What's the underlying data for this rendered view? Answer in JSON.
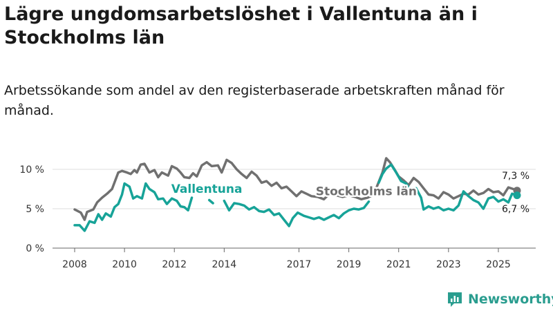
{
  "title": "Lägre ungdomsarbetslöshet i Vallentuna än i Stockholms län",
  "subtitle": "Arbetssökande som andel av den registerbaserade arbetskraften månad för månad.",
  "brand": {
    "name": "Newsworthy",
    "icon": "newsworthy-logo-icon"
  },
  "colors": {
    "vallentuna": "#17a398",
    "stockholm": "#707070",
    "grid": "#dddddd",
    "axis": "#666666"
  },
  "chart_data": {
    "type": "line",
    "x_range": [
      2008.0,
      2025.75
    ],
    "ylim": [
      0,
      12
    ],
    "y_ticks": [
      {
        "value": 0,
        "label": "0 %"
      },
      {
        "value": 5,
        "label": "5 %"
      },
      {
        "value": 10,
        "label": "10 %"
      }
    ],
    "x_ticks": [
      {
        "value": 2008,
        "label": "2008"
      },
      {
        "value": 2010,
        "label": "2010"
      },
      {
        "value": 2012,
        "label": "2012"
      },
      {
        "value": 2014,
        "label": "2014"
      },
      {
        "value": 2017,
        "label": "2017"
      },
      {
        "value": 2019,
        "label": "2019"
      },
      {
        "value": 2021,
        "label": "2021"
      },
      {
        "value": 2023,
        "label": "2023"
      },
      {
        "value": 2025,
        "label": "2025"
      }
    ],
    "series": [
      {
        "name": "Stockholms län",
        "color": "#707070",
        "end_label": "7,3 %",
        "points": [
          [
            2008.0,
            4.9
          ],
          [
            2008.25,
            4.5
          ],
          [
            2008.4,
            3.6
          ],
          [
            2008.5,
            4.6
          ],
          [
            2008.75,
            4.9
          ],
          [
            2008.9,
            5.8
          ],
          [
            2009.1,
            6.4
          ],
          [
            2009.3,
            6.9
          ],
          [
            2009.5,
            7.5
          ],
          [
            2009.75,
            9.6
          ],
          [
            2009.9,
            9.8
          ],
          [
            2010.1,
            9.6
          ],
          [
            2010.25,
            9.4
          ],
          [
            2010.4,
            9.9
          ],
          [
            2010.5,
            9.6
          ],
          [
            2010.65,
            10.6
          ],
          [
            2010.8,
            10.7
          ],
          [
            2011.0,
            9.6
          ],
          [
            2011.2,
            9.9
          ],
          [
            2011.35,
            9.0
          ],
          [
            2011.5,
            9.6
          ],
          [
            2011.75,
            9.2
          ],
          [
            2011.9,
            10.4
          ],
          [
            2012.1,
            10.1
          ],
          [
            2012.25,
            9.6
          ],
          [
            2012.4,
            9.0
          ],
          [
            2012.6,
            8.9
          ],
          [
            2012.75,
            9.5
          ],
          [
            2012.9,
            9.1
          ],
          [
            2013.1,
            10.5
          ],
          [
            2013.3,
            10.9
          ],
          [
            2013.5,
            10.4
          ],
          [
            2013.75,
            10.5
          ],
          [
            2013.9,
            9.6
          ],
          [
            2014.1,
            11.2
          ],
          [
            2014.3,
            10.8
          ],
          [
            2014.5,
            10.0
          ],
          [
            2014.7,
            9.4
          ],
          [
            2014.9,
            8.9
          ],
          [
            2015.1,
            9.7
          ],
          [
            2015.3,
            9.2
          ],
          [
            2015.5,
            8.3
          ],
          [
            2015.7,
            8.5
          ],
          [
            2015.9,
            7.9
          ],
          [
            2016.1,
            8.3
          ],
          [
            2016.3,
            7.6
          ],
          [
            2016.5,
            7.8
          ],
          [
            2016.7,
            7.2
          ],
          [
            2016.9,
            6.6
          ],
          [
            2017.1,
            7.2
          ],
          [
            2017.3,
            6.9
          ],
          [
            2017.5,
            6.6
          ],
          [
            2017.75,
            6.5
          ],
          [
            2018.0,
            6.2
          ],
          [
            2018.25,
            7.0
          ],
          [
            2018.5,
            6.7
          ],
          [
            2018.75,
            6.5
          ],
          [
            2019.0,
            6.7
          ],
          [
            2019.25,
            6.5
          ],
          [
            2019.5,
            6.2
          ],
          [
            2019.75,
            6.4
          ],
          [
            2020.0,
            6.8
          ],
          [
            2020.15,
            8.0
          ],
          [
            2020.35,
            9.6
          ],
          [
            2020.5,
            11.4
          ],
          [
            2020.65,
            10.9
          ],
          [
            2020.85,
            9.9
          ],
          [
            2021.0,
            9.1
          ],
          [
            2021.2,
            8.6
          ],
          [
            2021.4,
            8.0
          ],
          [
            2021.6,
            8.9
          ],
          [
            2021.8,
            8.4
          ],
          [
            2022.0,
            7.6
          ],
          [
            2022.2,
            6.8
          ],
          [
            2022.4,
            6.7
          ],
          [
            2022.6,
            6.3
          ],
          [
            2022.8,
            7.1
          ],
          [
            2023.0,
            6.8
          ],
          [
            2023.2,
            6.3
          ],
          [
            2023.4,
            6.6
          ],
          [
            2023.6,
            6.9
          ],
          [
            2023.8,
            6.8
          ],
          [
            2024.0,
            7.3
          ],
          [
            2024.2,
            6.8
          ],
          [
            2024.4,
            7.0
          ],
          [
            2024.6,
            7.5
          ],
          [
            2024.8,
            7.1
          ],
          [
            2025.0,
            7.2
          ],
          [
            2025.2,
            6.7
          ],
          [
            2025.4,
            7.7
          ],
          [
            2025.6,
            7.5
          ],
          [
            2025.75,
            7.3
          ]
        ]
      },
      {
        "name": "Vallentuna",
        "color": "#17a398",
        "end_label": "6,7 %",
        "points": [
          [
            2008.0,
            2.9
          ],
          [
            2008.2,
            2.9
          ],
          [
            2008.4,
            2.2
          ],
          [
            2008.6,
            3.4
          ],
          [
            2008.8,
            3.2
          ],
          [
            2008.95,
            4.3
          ],
          [
            2009.1,
            3.6
          ],
          [
            2009.25,
            4.4
          ],
          [
            2009.45,
            4.0
          ],
          [
            2009.6,
            5.2
          ],
          [
            2009.75,
            5.6
          ],
          [
            2009.9,
            6.8
          ],
          [
            2010.0,
            8.2
          ],
          [
            2010.2,
            7.8
          ],
          [
            2010.35,
            6.3
          ],
          [
            2010.5,
            6.6
          ],
          [
            2010.7,
            6.3
          ],
          [
            2010.85,
            8.2
          ],
          [
            2011.0,
            7.5
          ],
          [
            2011.2,
            7.1
          ],
          [
            2011.35,
            6.2
          ],
          [
            2011.55,
            6.3
          ],
          [
            2011.7,
            5.6
          ],
          [
            2011.9,
            6.3
          ],
          [
            2012.1,
            6.0
          ],
          [
            2012.25,
            5.3
          ],
          [
            2012.4,
            5.2
          ],
          [
            2012.55,
            4.8
          ],
          [
            2012.7,
            6.4
          ],
          [
            2013.4,
            6.1
          ],
          [
            2013.55,
            5.7
          ],
          [
            2014.0,
            6.0
          ],
          [
            2014.2,
            4.8
          ],
          [
            2014.4,
            5.7
          ],
          [
            2014.6,
            5.6
          ],
          [
            2014.8,
            5.4
          ],
          [
            2015.0,
            4.9
          ],
          [
            2015.2,
            5.2
          ],
          [
            2015.4,
            4.7
          ],
          [
            2015.6,
            4.6
          ],
          [
            2015.8,
            4.9
          ],
          [
            2016.0,
            4.2
          ],
          [
            2016.2,
            4.4
          ],
          [
            2016.4,
            3.6
          ],
          [
            2016.6,
            2.8
          ],
          [
            2016.75,
            3.8
          ],
          [
            2016.95,
            4.5
          ],
          [
            2017.2,
            4.1
          ],
          [
            2017.4,
            3.9
          ],
          [
            2017.6,
            3.7
          ],
          [
            2017.8,
            3.9
          ],
          [
            2018.0,
            3.6
          ],
          [
            2018.2,
            3.9
          ],
          [
            2018.4,
            4.2
          ],
          [
            2018.6,
            3.8
          ],
          [
            2018.8,
            4.4
          ],
          [
            2019.0,
            4.8
          ],
          [
            2019.2,
            5.0
          ],
          [
            2019.4,
            4.9
          ],
          [
            2019.6,
            5.1
          ],
          [
            2019.8,
            5.9
          ],
          [
            2020.2,
            8.3
          ],
          [
            2020.35,
            9.4
          ],
          [
            2020.5,
            10.1
          ],
          [
            2020.7,
            10.6
          ],
          [
            2020.9,
            9.6
          ],
          [
            2021.1,
            8.5
          ],
          [
            2021.3,
            8.2
          ],
          [
            2021.5,
            7.1
          ],
          [
            2021.7,
            7.6
          ],
          [
            2021.9,
            6.4
          ],
          [
            2022.0,
            4.9
          ],
          [
            2022.2,
            5.3
          ],
          [
            2022.4,
            5.0
          ],
          [
            2022.6,
            5.2
          ],
          [
            2022.8,
            4.8
          ],
          [
            2023.0,
            5.0
          ],
          [
            2023.2,
            4.8
          ],
          [
            2023.4,
            5.4
          ],
          [
            2023.6,
            7.2
          ],
          [
            2023.8,
            6.6
          ],
          [
            2024.0,
            6.1
          ],
          [
            2024.2,
            5.8
          ],
          [
            2024.4,
            5.0
          ],
          [
            2024.6,
            6.3
          ],
          [
            2024.8,
            6.5
          ],
          [
            2025.0,
            5.9
          ],
          [
            2025.2,
            6.2
          ],
          [
            2025.4,
            5.8
          ],
          [
            2025.55,
            6.9
          ],
          [
            2025.75,
            6.7
          ]
        ]
      }
    ],
    "annotations": [
      {
        "text": "Vallentuna",
        "series": "Vallentuna",
        "x": 2013.3,
        "y": 7.0
      },
      {
        "text": "Stockholms län",
        "series": "Stockholms län",
        "x": 2019.7,
        "y": 6.7
      }
    ]
  }
}
